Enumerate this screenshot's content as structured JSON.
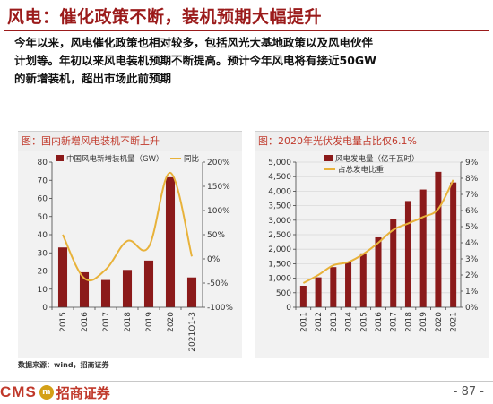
{
  "header": {
    "title": "风电：催化政策不断，装机预期大幅提升",
    "body_line1": "今年以来，风电催化政策也相对较多，包括风光大基地政策以及风电伙伴",
    "body_line2": "计划等。年初以来风电装机预期不断提高。预计今年风电将有接近50GW",
    "body_line3": "的新增装机，超出市场此前预期"
  },
  "footer": {
    "source": "数据来源：wind，招商证券",
    "logo_cms": "CMS",
    "logo_mark": "m",
    "logo_name": "招商证券",
    "page_number": "- 87 -"
  },
  "colors": {
    "brand_red": "#9b1b1b",
    "bar": "#8b1a1a",
    "line": "#e8b23a",
    "panel_bg": "#f2f2f2"
  },
  "chart_data": [
    {
      "type": "bar",
      "title": "图：国内新增风电装机不断上升",
      "categories": [
        "2015",
        "2016",
        "2017",
        "2018",
        "2019",
        "2020",
        "2021Q1-3"
      ],
      "series": [
        {
          "name": "中国风电新增装机量（GW）",
          "type": "bar",
          "axis": "left",
          "values": [
            32.97,
            19.3,
            15.03,
            20.59,
            25.74,
            71.67,
            16.43
          ]
        },
        {
          "name": "同比",
          "type": "line",
          "axis": "right",
          "unit": "%",
          "values": [
            50,
            -40,
            -22,
            37,
            25,
            178,
            5
          ]
        }
      ],
      "y_left": {
        "min": 0,
        "max": 80,
        "ticks": [
          "0",
          "10",
          "20",
          "30",
          "40",
          "50",
          "60",
          "70",
          "80"
        ]
      },
      "y_right": {
        "min": -100,
        "max": 200,
        "ticks": [
          "-100%",
          "-50%",
          "0%",
          "50%",
          "100%",
          "150%",
          "200%"
        ]
      },
      "legend_position": "top",
      "grid": false
    },
    {
      "type": "bar",
      "title": "图：2020年光伏发电量占比仅6.1%",
      "categories": [
        "2011",
        "2012",
        "2013",
        "2014",
        "2015",
        "2016",
        "2017",
        "2018",
        "2019",
        "2020",
        "2021"
      ],
      "series": [
        {
          "name": "风电发电量（亿千瓦时）",
          "type": "bar",
          "axis": "left",
          "values": [
            741,
            1030,
            1383,
            1563,
            1856,
            2409,
            3034,
            3660,
            4057,
            4665,
            4300
          ]
        },
        {
          "name": "占总发电比重",
          "type": "line",
          "axis": "right",
          "unit": "%",
          "values": [
            1.5,
            2.0,
            2.6,
            2.8,
            3.3,
            4.0,
            4.8,
            5.2,
            5.6,
            6.1,
            7.9
          ]
        }
      ],
      "y_left": {
        "min": 0,
        "max": 5000,
        "ticks": [
          "0",
          "500",
          "1,000",
          "1,500",
          "2,000",
          "2,500",
          "3,000",
          "3,500",
          "4,000",
          "4,500",
          "5,000"
        ]
      },
      "y_right": {
        "min": 0,
        "max": 9,
        "ticks": [
          "0%",
          "1%",
          "2%",
          "3%",
          "4%",
          "5%",
          "6%",
          "7%",
          "8%",
          "9%"
        ]
      },
      "legend_position": "top",
      "grid": true
    }
  ]
}
